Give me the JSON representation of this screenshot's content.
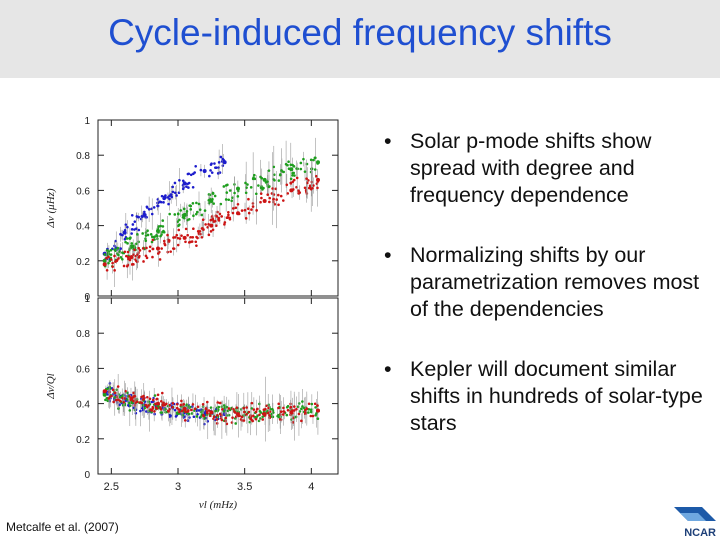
{
  "title": "Cycle-induced frequency shifts",
  "bullets": [
    "Solar p-mode shifts show spread with degree and frequency dependence",
    "Normalizing shifts by our parametrization removes most of the dependencies",
    "Kepler will document similar shifts in hundreds of solar-type stars"
  ],
  "citation": "Metcalfe et al. (2007)",
  "logo": {
    "name": "ncar-logo",
    "text": "NCAR"
  },
  "colors": {
    "title": "#1f4fd1",
    "series_blue": "#1c1ccc",
    "series_green": "#1e9e1e",
    "series_red": "#cc1414",
    "error_bars": "#9a9a9a"
  },
  "chart_data": [
    {
      "type": "scatter",
      "title": "",
      "xlabel": "",
      "ylabel": "Δν (μHz)",
      "xlim": [
        2.4,
        4.2
      ],
      "ylim": [
        0,
        1
      ],
      "yticks": [
        "0",
        "0.2",
        "0.4",
        "0.6",
        "0.8",
        "1"
      ],
      "xticks": [],
      "series": [
        {
          "color": "#1c1ccc",
          "x": [
            2.45,
            2.6,
            2.75,
            2.9,
            3.05,
            3.2,
            3.35
          ],
          "y": [
            0.24,
            0.36,
            0.46,
            0.56,
            0.64,
            0.71,
            0.76
          ]
        },
        {
          "color": "#1e9e1e",
          "x": [
            2.45,
            2.65,
            2.85,
            3.05,
            3.25,
            3.45,
            3.65,
            3.85,
            4.05
          ],
          "y": [
            0.2,
            0.28,
            0.37,
            0.46,
            0.54,
            0.61,
            0.66,
            0.72,
            0.76
          ]
        },
        {
          "color": "#cc1414",
          "x": [
            2.45,
            2.65,
            2.85,
            3.05,
            3.25,
            3.45,
            3.65,
            3.85,
            4.05
          ],
          "y": [
            0.18,
            0.22,
            0.27,
            0.33,
            0.4,
            0.47,
            0.54,
            0.6,
            0.66
          ]
        }
      ]
    },
    {
      "type": "scatter",
      "title": "",
      "xlabel": "νl (mHz)",
      "ylabel": "Δν/Ql",
      "xlim": [
        2.4,
        4.2
      ],
      "ylim": [
        0,
        1
      ],
      "yticks": [
        "0",
        "0.2",
        "0.4",
        "0.6",
        "0.8",
        "1"
      ],
      "xticks": [
        "2.5",
        "3",
        "3.5",
        "4"
      ],
      "series": [
        {
          "color": "#1c1ccc",
          "x": [
            2.45,
            2.6,
            2.75,
            2.9,
            3.05,
            3.2,
            3.35
          ],
          "y": [
            0.46,
            0.42,
            0.39,
            0.37,
            0.35,
            0.34,
            0.34
          ]
        },
        {
          "color": "#1e9e1e",
          "x": [
            2.45,
            2.65,
            2.85,
            3.05,
            3.25,
            3.45,
            3.65,
            3.85,
            4.05
          ],
          "y": [
            0.45,
            0.41,
            0.38,
            0.36,
            0.35,
            0.35,
            0.35,
            0.36,
            0.36
          ]
        },
        {
          "color": "#cc1414",
          "x": [
            2.45,
            2.65,
            2.85,
            3.05,
            3.25,
            3.45,
            3.65,
            3.85,
            4.05
          ],
          "y": [
            0.47,
            0.43,
            0.4,
            0.37,
            0.35,
            0.34,
            0.34,
            0.35,
            0.36
          ]
        }
      ]
    }
  ]
}
